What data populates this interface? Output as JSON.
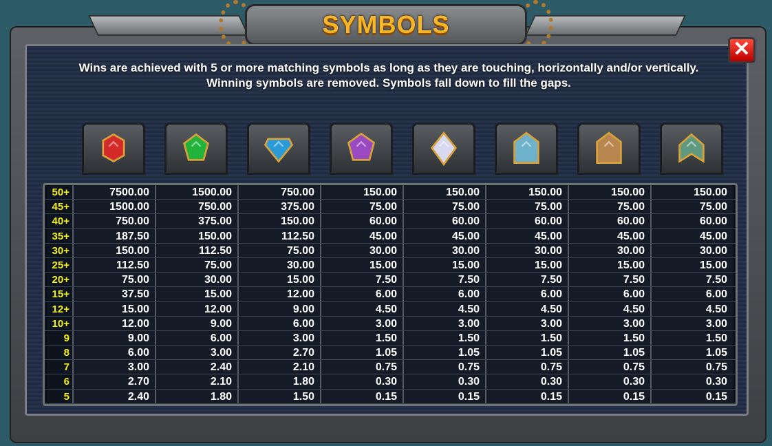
{
  "title": "SYMBOLS",
  "close_icon": "close-x-icon",
  "description": {
    "line1": "Wins are achieved with 5 or more matching symbols as long as they are touching, horizontally and/or vertically.",
    "line2": "Winning symbols are removed. Symbols fall down to fill the gaps."
  },
  "symbols": [
    {
      "icon": "red-gem-icon",
      "color": "#d42a2a"
    },
    {
      "icon": "green-gem-icon",
      "color": "#22b33a"
    },
    {
      "icon": "blue-diamond-icon",
      "color": "#2a9bd8"
    },
    {
      "icon": "purple-star-icon",
      "color": "#9a4ac0"
    },
    {
      "icon": "white-diamond-icon",
      "color": "#d8d8f0"
    },
    {
      "icon": "blue-chevron-icon",
      "color": "#6fb2cc"
    },
    {
      "icon": "bronze-chevron-icon",
      "color": "#b8874f"
    },
    {
      "icon": "green-chevron-icon",
      "color": "#5f9a80"
    }
  ],
  "paytable": {
    "counts": [
      "50+",
      "45+",
      "40+",
      "35+",
      "30+",
      "25+",
      "20+",
      "15+",
      "12+",
      "10+",
      "9",
      "8",
      "7",
      "6",
      "5"
    ],
    "rows": [
      [
        "7500.00",
        "1500.00",
        "750.00",
        "150.00",
        "150.00",
        "150.00",
        "150.00",
        "150.00"
      ],
      [
        "1500.00",
        "750.00",
        "375.00",
        "75.00",
        "75.00",
        "75.00",
        "75.00",
        "75.00"
      ],
      [
        "750.00",
        "375.00",
        "150.00",
        "60.00",
        "60.00",
        "60.00",
        "60.00",
        "60.00"
      ],
      [
        "187.50",
        "150.00",
        "112.50",
        "45.00",
        "45.00",
        "45.00",
        "45.00",
        "45.00"
      ],
      [
        "150.00",
        "112.50",
        "75.00",
        "30.00",
        "30.00",
        "30.00",
        "30.00",
        "30.00"
      ],
      [
        "112.50",
        "75.00",
        "30.00",
        "15.00",
        "15.00",
        "15.00",
        "15.00",
        "15.00"
      ],
      [
        "75.00",
        "30.00",
        "15.00",
        "7.50",
        "7.50",
        "7.50",
        "7.50",
        "7.50"
      ],
      [
        "37.50",
        "15.00",
        "12.00",
        "6.00",
        "6.00",
        "6.00",
        "6.00",
        "6.00"
      ],
      [
        "15.00",
        "12.00",
        "9.00",
        "4.50",
        "4.50",
        "4.50",
        "4.50",
        "4.50"
      ],
      [
        "12.00",
        "9.00",
        "6.00",
        "3.00",
        "3.00",
        "3.00",
        "3.00",
        "3.00"
      ],
      [
        "9.00",
        "6.00",
        "3.00",
        "1.50",
        "1.50",
        "1.50",
        "1.50",
        "1.50"
      ],
      [
        "6.00",
        "3.00",
        "2.70",
        "1.05",
        "1.05",
        "1.05",
        "1.05",
        "1.05"
      ],
      [
        "3.00",
        "2.40",
        "2.10",
        "0.75",
        "0.75",
        "0.75",
        "0.75",
        "0.75"
      ],
      [
        "2.70",
        "2.10",
        "1.80",
        "0.30",
        "0.30",
        "0.30",
        "0.30",
        "0.30"
      ],
      [
        "2.40",
        "1.80",
        "1.50",
        "0.15",
        "0.15",
        "0.15",
        "0.15",
        "0.15"
      ]
    ]
  }
}
